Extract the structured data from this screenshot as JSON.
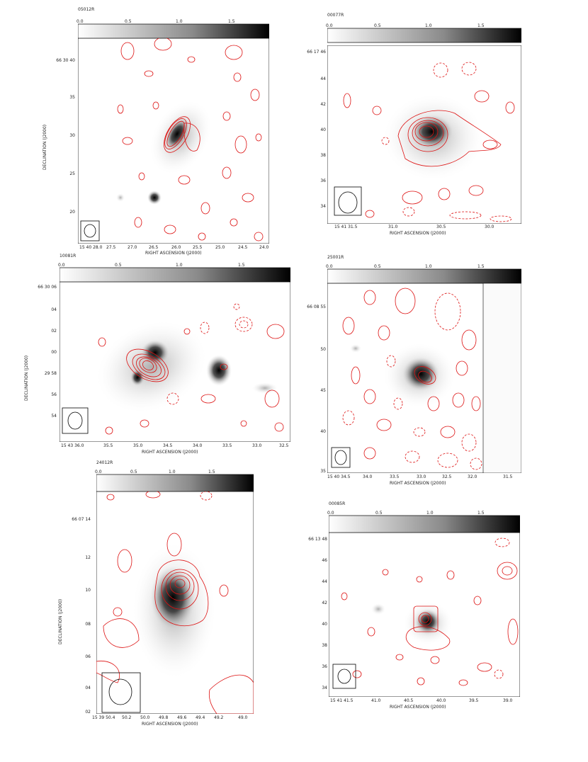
{
  "panels": [
    {
      "id": "p1",
      "title": "05012R",
      "cbar_ticks": [
        "0.0",
        "0.5",
        "1.0",
        "1.5"
      ],
      "y_ticks": [
        "66 30 40",
        "35",
        "30",
        "25",
        "20"
      ],
      "x_ticks": [
        "15 40 28.0",
        "27.5",
        "27.0",
        "26.5",
        "26.0",
        "25.5",
        "25.0",
        "24.5",
        "24.0"
      ],
      "xlabel": "RIGHT ASCENSION (J2000)",
      "ylabel": "DECLINATION (J2000)"
    },
    {
      "id": "p2",
      "title": "00077R",
      "cbar_ticks": [
        "0.0",
        "0.5",
        "1.0",
        "1.5"
      ],
      "y_ticks": [
        "66 17 46",
        "44",
        "42",
        "40",
        "38",
        "36",
        "34"
      ],
      "x_ticks": [
        "15 41 31.5",
        "31.0",
        "30.5",
        "30.0"
      ],
      "xlabel": "RIGHT ASCENSION (J2000)",
      "ylabel": ""
    },
    {
      "id": "p3",
      "title": "10081R",
      "cbar_ticks": [
        "0.0",
        "0.5",
        "1.0",
        "1.5"
      ],
      "y_ticks": [
        "66 30 06",
        "04",
        "02",
        "00",
        "29 58",
        "56",
        "54"
      ],
      "x_ticks": [
        "15 43 36.0",
        "35.5",
        "35.0",
        "34.5",
        "34.0",
        "33.5",
        "33.0",
        "32.5"
      ],
      "xlabel": "RIGHT ASCENSION (J2000)",
      "ylabel": "DECLINATION (J2000)"
    },
    {
      "id": "p4",
      "title": "25001R",
      "cbar_ticks": [
        "0.0",
        "0.5",
        "1.0",
        "1.5"
      ],
      "y_ticks": [
        "66 08 55",
        "50",
        "45",
        "40",
        "35"
      ],
      "x_ticks": [
        "15 40 34.5",
        "34.0",
        "33.5",
        "33.0",
        "32.5",
        "32.0",
        "31.5"
      ],
      "xlabel": "RIGHT ASCENSION (J2000)",
      "ylabel": ""
    },
    {
      "id": "p5",
      "title": "24012R",
      "cbar_ticks": [
        "0.0",
        "0.5",
        "1.0",
        "1.5"
      ],
      "y_ticks": [
        "66 07 14",
        "12",
        "10",
        "08",
        "06",
        "04",
        "02"
      ],
      "x_ticks": [
        "15 39 50.4",
        "50.2",
        "50.0",
        "49.8",
        "49.6",
        "49.4",
        "49.2",
        "49.0"
      ],
      "xlabel": "RIGHT ASCENSION (J2000)",
      "ylabel": "DECLINATION (J2000)"
    },
    {
      "id": "p6",
      "title": "00085R",
      "cbar_ticks": [
        "0.0",
        "0.5",
        "1.0",
        "1.5"
      ],
      "y_ticks": [
        "66 13 48",
        "46",
        "44",
        "42",
        "40",
        "38",
        "36",
        "34"
      ],
      "x_ticks": [
        "15 41 41.5",
        "41.0",
        "40.5",
        "40.0",
        "39.5",
        "39.0"
      ],
      "xlabel": "RIGHT ASCENSION (J2000)",
      "ylabel": ""
    }
  ]
}
